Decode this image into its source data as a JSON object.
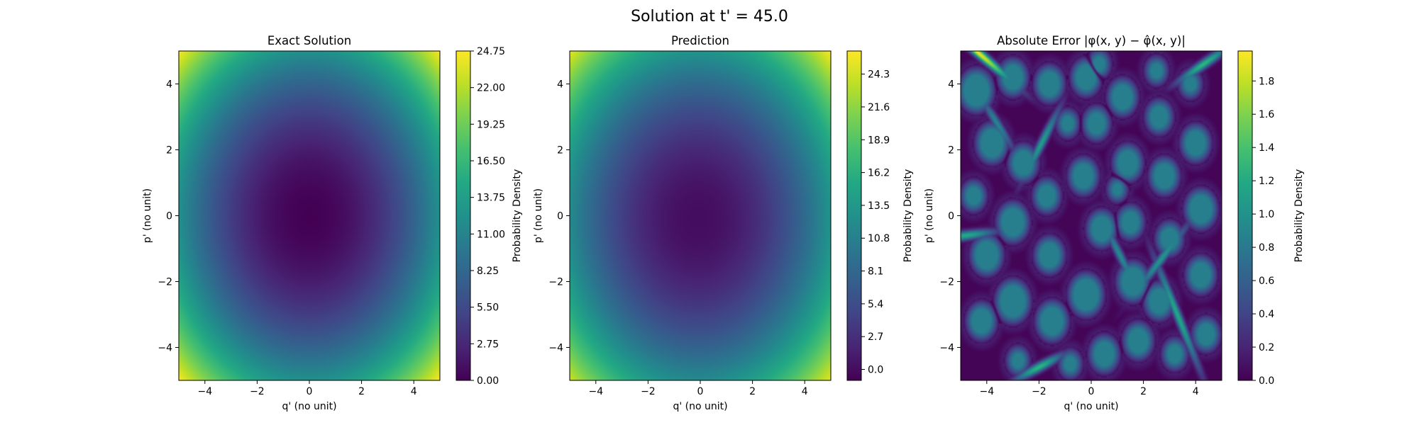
{
  "suptitle": "Solution at t' = 45.0",
  "colors": {
    "viridis": [
      "#440154",
      "#482475",
      "#414487",
      "#355f8d",
      "#2a788e",
      "#21918c",
      "#22a884",
      "#44bf70",
      "#7ad151",
      "#bddf26",
      "#fde725"
    ]
  },
  "chart_data": [
    {
      "type": "heatmap",
      "title": "Exact Solution",
      "xlabel": "q' (no unit)",
      "ylabel": "p' (no unit)",
      "xlim": [
        -5,
        5
      ],
      "ylim": [
        -5,
        5
      ],
      "xticks": [
        -4,
        -2,
        0,
        2,
        4
      ],
      "yticks": [
        -4,
        -2,
        0,
        2,
        4
      ],
      "colormap": "viridis",
      "colorbar": {
        "label": "Probability Density",
        "range": [
          0,
          24.75
        ],
        "ticks": [
          "0.00",
          "2.75",
          "5.50",
          "8.25",
          "11.00",
          "13.75",
          "16.50",
          "19.25",
          "22.00",
          "24.75"
        ]
      },
      "field": "paraboloid",
      "center": [
        0,
        0
      ],
      "corner_value": 24.75
    },
    {
      "type": "heatmap",
      "title": "Prediction",
      "xlabel": "q' (no unit)",
      "ylabel": "p' (no unit)",
      "xlim": [
        -5,
        5
      ],
      "ylim": [
        -5,
        5
      ],
      "xticks": [
        -4,
        -2,
        0,
        2,
        4
      ],
      "yticks": [
        -4,
        -2,
        0,
        2,
        4
      ],
      "colormap": "viridis",
      "colorbar": {
        "label": "Probability Density",
        "range": [
          -0.9,
          26.2
        ],
        "ticks": [
          "0.0",
          "2.7",
          "5.4",
          "8.1",
          "10.8",
          "13.5",
          "16.2",
          "18.9",
          "21.6",
          "24.3"
        ]
      },
      "field": "paraboloid",
      "center": [
        -0.1,
        -0.1
      ],
      "corner_value": 25.2
    },
    {
      "type": "heatmap",
      "title": "Absolute Error |φ(x, y) − φ̂(x, y)|",
      "xlabel": "q' (no unit)",
      "ylabel": "p' (no unit)",
      "xlim": [
        -5,
        5
      ],
      "ylim": [
        -5,
        5
      ],
      "xticks": [
        -4,
        -2,
        0,
        2,
        4
      ],
      "yticks": [
        -4,
        -2,
        0,
        2,
        4
      ],
      "colormap": "viridis",
      "colorbar": {
        "label": "Probability Density",
        "range": [
          0,
          1.98
        ],
        "ticks": [
          "0.0",
          "0.2",
          "0.4",
          "0.6",
          "0.8",
          "1.0",
          "1.2",
          "1.4",
          "1.6",
          "1.8"
        ]
      },
      "field": "blobs",
      "blobs": [
        [
          -4.4,
          3.8,
          0.8
        ],
        [
          -3.8,
          2.2,
          0.75
        ],
        [
          -4.5,
          0.6,
          0.6
        ],
        [
          -4.0,
          -1.2,
          0.75
        ],
        [
          -4.2,
          -3.2,
          0.7
        ],
        [
          -3.0,
          4.2,
          0.7
        ],
        [
          -2.6,
          1.6,
          0.7
        ],
        [
          -3.0,
          -0.2,
          0.75
        ],
        [
          -3.0,
          -2.6,
          0.8
        ],
        [
          -2.8,
          -4.4,
          0.55
        ],
        [
          -1.6,
          4.0,
          0.7
        ],
        [
          -1.7,
          0.6,
          0.65
        ],
        [
          -1.6,
          -1.2,
          0.7
        ],
        [
          -1.5,
          -3.2,
          0.75
        ],
        [
          -0.8,
          -4.5,
          0.55
        ],
        [
          -0.2,
          4.2,
          0.7
        ],
        [
          0.2,
          2.8,
          0.65
        ],
        [
          -0.3,
          1.2,
          0.7
        ],
        [
          0.4,
          -0.4,
          0.7
        ],
        [
          -0.2,
          -2.4,
          0.8
        ],
        [
          0.5,
          -4.2,
          0.7
        ],
        [
          0.3,
          4.6,
          0.55
        ],
        [
          1.2,
          3.6,
          0.7
        ],
        [
          1.4,
          1.6,
          0.7
        ],
        [
          1.5,
          -0.2,
          0.65
        ],
        [
          1.6,
          -2.0,
          0.75
        ],
        [
          1.8,
          -3.8,
          0.7
        ],
        [
          2.5,
          4.4,
          0.55
        ],
        [
          2.6,
          3.0,
          0.65
        ],
        [
          2.8,
          1.2,
          0.7
        ],
        [
          3.0,
          -0.7,
          0.65
        ],
        [
          2.6,
          -2.6,
          0.7
        ],
        [
          3.2,
          -4.2,
          0.6
        ],
        [
          3.8,
          4.0,
          0.55
        ],
        [
          4.0,
          2.2,
          0.7
        ],
        [
          4.2,
          0.2,
          0.75
        ],
        [
          4.2,
          -1.8,
          0.7
        ],
        [
          4.4,
          -3.6,
          0.65
        ],
        [
          -0.9,
          2.8,
          0.55
        ],
        [
          1.0,
          0.8,
          0.5
        ]
      ],
      "streaks": [
        [
          -4.4,
          5.0,
          1.2,
          -0.6,
          1.95
        ],
        [
          -4.8,
          -0.6,
          0.8,
          0.1,
          1.2
        ],
        [
          -1.9,
          2.2,
          0.9,
          1.0,
          1.1
        ],
        [
          -2.0,
          -4.6,
          0.7,
          0.4,
          1.3
        ],
        [
          3.3,
          -3.0,
          1.3,
          -1.1,
          1.2
        ],
        [
          2.7,
          -1.3,
          1.0,
          0.8,
          1.05
        ],
        [
          4.3,
          4.6,
          0.8,
          0.5,
          1.3
        ],
        [
          -3.6,
          2.8,
          0.7,
          -0.9,
          0.9
        ],
        [
          1.1,
          -1.2,
          0.8,
          -1.0,
          0.95
        ]
      ]
    }
  ]
}
